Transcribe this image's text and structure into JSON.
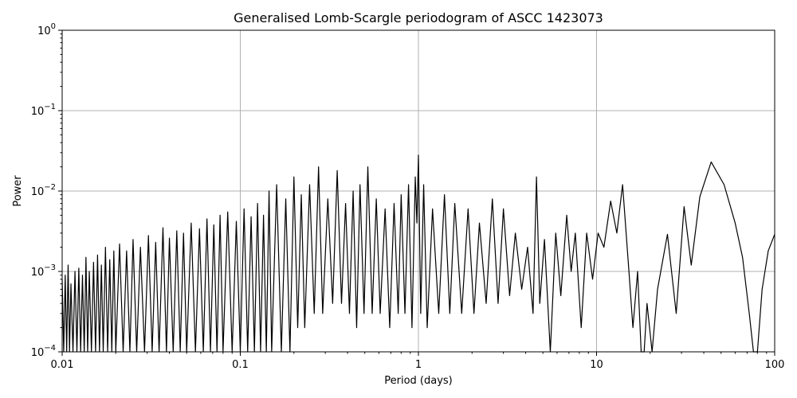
{
  "chart_data": {
    "type": "line",
    "title": "Generalised Lomb-Scargle periodogram of ASCC 1423073",
    "xlabel": "Period (days)",
    "ylabel": "Power",
    "xscale": "log",
    "yscale": "log",
    "xlim": [
      0.01,
      100
    ],
    "ylim": [
      0.0001,
      1
    ],
    "grid": true,
    "x_ticks": [
      {
        "value": 0.01,
        "label": "0.01"
      },
      {
        "value": 0.1,
        "label": "0.1"
      },
      {
        "value": 1,
        "label": "1"
      },
      {
        "value": 10,
        "label": "10"
      },
      {
        "value": 100,
        "label": "100"
      }
    ],
    "y_ticks": [
      {
        "value": 0.0001,
        "base": "10",
        "exp": "−4"
      },
      {
        "value": 0.001,
        "base": "10",
        "exp": "−3"
      },
      {
        "value": 0.01,
        "base": "10",
        "exp": "−2"
      },
      {
        "value": 0.1,
        "base": "10",
        "exp": "−1"
      },
      {
        "value": 1,
        "base": "10",
        "exp": "0"
      }
    ],
    "series": [
      {
        "color": "#000000",
        "points": [
          [
            0.01,
            0.0008
          ],
          [
            0.0102,
            0.0001
          ],
          [
            0.0104,
            0.0009
          ],
          [
            0.0106,
            0.0001
          ],
          [
            0.0108,
            0.0012
          ],
          [
            0.011,
            0.0001
          ],
          [
            0.0112,
            0.0007
          ],
          [
            0.0115,
            0.0001
          ],
          [
            0.0118,
            0.001
          ],
          [
            0.0121,
            0.0001
          ],
          [
            0.0124,
            0.0011
          ],
          [
            0.0127,
            0.0001
          ],
          [
            0.013,
            0.0009
          ],
          [
            0.0133,
            0.0001
          ],
          [
            0.0136,
            0.0015
          ],
          [
            0.0139,
            0.0001
          ],
          [
            0.0142,
            0.001
          ],
          [
            0.0146,
            0.0001
          ],
          [
            0.015,
            0.0013
          ],
          [
            0.0154,
            0.0001
          ],
          [
            0.0158,
            0.0016
          ],
          [
            0.0162,
            0.0001
          ],
          [
            0.0166,
            0.0012
          ],
          [
            0.017,
            0.0001
          ],
          [
            0.0175,
            0.002
          ],
          [
            0.018,
            0.0001
          ],
          [
            0.0185,
            0.0014
          ],
          [
            0.019,
            0.0001
          ],
          [
            0.0195,
            0.0018
          ],
          [
            0.02,
            0.0001
          ],
          [
            0.021,
            0.0022
          ],
          [
            0.022,
            0.0001
          ],
          [
            0.023,
            0.0018
          ],
          [
            0.024,
            0.0001
          ],
          [
            0.025,
            0.0025
          ],
          [
            0.0262,
            0.0001
          ],
          [
            0.0275,
            0.002
          ],
          [
            0.029,
            0.0001
          ],
          [
            0.0305,
            0.0028
          ],
          [
            0.032,
            0.0001
          ],
          [
            0.0335,
            0.0023
          ],
          [
            0.035,
            0.0001
          ],
          [
            0.0368,
            0.0035
          ],
          [
            0.0385,
            0.0001
          ],
          [
            0.04,
            0.0026
          ],
          [
            0.042,
            0.0001
          ],
          [
            0.044,
            0.0032
          ],
          [
            0.046,
            0.0001
          ],
          [
            0.048,
            0.003
          ],
          [
            0.05,
            0.0001
          ],
          [
            0.053,
            0.004
          ],
          [
            0.056,
            0.0001
          ],
          [
            0.059,
            0.0034
          ],
          [
            0.062,
            0.0001
          ],
          [
            0.065,
            0.0045
          ],
          [
            0.068,
            0.0001
          ],
          [
            0.071,
            0.0038
          ],
          [
            0.074,
            0.0001
          ],
          [
            0.077,
            0.005
          ],
          [
            0.08,
            0.0001
          ],
          [
            0.085,
            0.0055
          ],
          [
            0.09,
            0.0001
          ],
          [
            0.095,
            0.0042
          ],
          [
            0.1,
            0.0001
          ],
          [
            0.105,
            0.006
          ],
          [
            0.11,
            0.0001
          ],
          [
            0.115,
            0.0048
          ],
          [
            0.12,
            0.0001
          ],
          [
            0.125,
            0.007
          ],
          [
            0.13,
            0.0001
          ],
          [
            0.135,
            0.005
          ],
          [
            0.14,
            0.0001
          ],
          [
            0.145,
            0.01
          ],
          [
            0.15,
            0.0001
          ],
          [
            0.16,
            0.012
          ],
          [
            0.17,
            0.0001
          ],
          [
            0.18,
            0.008
          ],
          [
            0.19,
            0.0001
          ],
          [
            0.2,
            0.015
          ],
          [
            0.21,
            0.0002
          ],
          [
            0.22,
            0.009
          ],
          [
            0.23,
            0.0002
          ],
          [
            0.245,
            0.012
          ],
          [
            0.26,
            0.0003
          ],
          [
            0.275,
            0.02
          ],
          [
            0.29,
            0.0003
          ],
          [
            0.31,
            0.008
          ],
          [
            0.33,
            0.0004
          ],
          [
            0.35,
            0.018
          ],
          [
            0.37,
            0.0004
          ],
          [
            0.39,
            0.007
          ],
          [
            0.41,
            0.0003
          ],
          [
            0.43,
            0.01
          ],
          [
            0.45,
            0.0002
          ],
          [
            0.47,
            0.012
          ],
          [
            0.495,
            0.0003
          ],
          [
            0.52,
            0.02
          ],
          [
            0.55,
            0.0003
          ],
          [
            0.58,
            0.008
          ],
          [
            0.61,
            0.0003
          ],
          [
            0.65,
            0.006
          ],
          [
            0.69,
            0.0002
          ],
          [
            0.73,
            0.007
          ],
          [
            0.77,
            0.0003
          ],
          [
            0.8,
            0.009
          ],
          [
            0.84,
            0.0003
          ],
          [
            0.88,
            0.012
          ],
          [
            0.92,
            0.0002
          ],
          [
            0.96,
            0.015
          ],
          [
            0.98,
            0.004
          ],
          [
            1.0,
            0.028
          ],
          [
            1.03,
            0.0003
          ],
          [
            1.07,
            0.012
          ],
          [
            1.12,
            0.0002
          ],
          [
            1.2,
            0.006
          ],
          [
            1.3,
            0.0003
          ],
          [
            1.4,
            0.009
          ],
          [
            1.5,
            0.0003
          ],
          [
            1.6,
            0.007
          ],
          [
            1.75,
            0.0003
          ],
          [
            1.9,
            0.006
          ],
          [
            2.05,
            0.0003
          ],
          [
            2.2,
            0.004
          ],
          [
            2.4,
            0.0004
          ],
          [
            2.6,
            0.008
          ],
          [
            2.8,
            0.0004
          ],
          [
            3.0,
            0.006
          ],
          [
            3.25,
            0.0005
          ],
          [
            3.5,
            0.003
          ],
          [
            3.8,
            0.0006
          ],
          [
            4.1,
            0.002
          ],
          [
            4.4,
            0.0003
          ],
          [
            4.6,
            0.015
          ],
          [
            4.8,
            0.0004
          ],
          [
            5.1,
            0.0025
          ],
          [
            5.5,
            0.0001
          ],
          [
            5.9,
            0.003
          ],
          [
            6.3,
            0.0005
          ],
          [
            6.8,
            0.005
          ],
          [
            7.2,
            0.001
          ],
          [
            7.6,
            0.003
          ],
          [
            8.2,
            0.0002
          ],
          [
            8.8,
            0.003
          ],
          [
            9.5,
            0.0008
          ],
          [
            10.2,
            0.003
          ],
          [
            11.0,
            0.002
          ],
          [
            12.0,
            0.0075
          ],
          [
            13.0,
            0.003
          ],
          [
            14.0,
            0.012
          ],
          [
            15.2,
            0.001
          ],
          [
            16.0,
            0.0002
          ],
          [
            17.0,
            0.001
          ],
          [
            17.8,
            0.0001
          ],
          [
            18.5,
            0.0001
          ],
          [
            19.2,
            0.0004
          ],
          [
            20.5,
            0.0001
          ],
          [
            22.0,
            0.0006
          ],
          [
            25.0,
            0.0029
          ],
          [
            28.0,
            0.0003
          ],
          [
            31.0,
            0.0064
          ],
          [
            34.0,
            0.0012
          ],
          [
            38.0,
            0.0085
          ],
          [
            44.0,
            0.023
          ],
          [
            52.0,
            0.012
          ],
          [
            60.0,
            0.004
          ],
          [
            66.0,
            0.0015
          ],
          [
            72.0,
            0.0003
          ],
          [
            76.0,
            0.0001
          ],
          [
            80.0,
            0.0001
          ],
          [
            85.0,
            0.0006
          ],
          [
            92.0,
            0.0018
          ],
          [
            100.0,
            0.0029
          ]
        ]
      }
    ]
  }
}
